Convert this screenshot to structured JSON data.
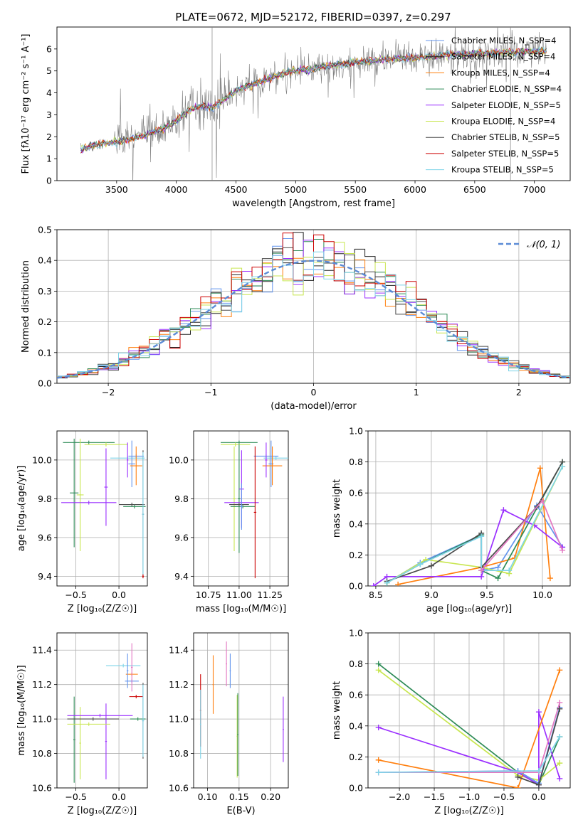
{
  "figure": {
    "title": "PLATE=0672, MJD=52172, FIBERID=0397, z=0.297"
  },
  "model_colors": [
    "#6495ed",
    "#222222",
    "#ff7f0e",
    "#2e8b57",
    "#9b30ff",
    "#c8e650",
    "#4a4a4a",
    "#cc0000",
    "#7fd4e8"
  ],
  "chart_data": [
    {
      "id": "spectrum",
      "type": "line",
      "xlabel": "wavelength [Angstrom, rest frame]",
      "ylabel": "Flux [f$_\\lambda$ 10$^{-17}$ erg cm$^{-2}$ s$^{-1}$ A$^{-1}$]",
      "ylabel_text": "Flux [fλ10⁻¹⁷ erg cm⁻² s⁻¹ A⁻¹]",
      "xlim": [
        3000,
        7300
      ],
      "ylim": [
        0,
        7
      ],
      "xticks": [
        3500,
        4000,
        4500,
        5000,
        5500,
        6000,
        6500,
        7000
      ],
      "yticks": [
        0,
        1,
        2,
        3,
        4,
        5,
        6
      ],
      "grid": false,
      "legend_position": "lower-right",
      "data_color": "#808080",
      "continuum": {
        "x": [
          3200,
          3300,
          3400,
          3500,
          3600,
          3700,
          3800,
          3900,
          4000,
          4100,
          4200,
          4300,
          4400,
          4500,
          4600,
          4700,
          4800,
          4900,
          5000,
          5200,
          5400,
          5600,
          5800,
          6000,
          6200,
          6400,
          6600,
          6800,
          7000,
          7100
        ],
        "y": [
          1.4,
          1.6,
          1.7,
          1.75,
          1.9,
          2.0,
          2.2,
          2.4,
          2.7,
          3.2,
          3.4,
          3.3,
          3.7,
          4.1,
          4.3,
          4.5,
          4.7,
          4.9,
          5.0,
          5.15,
          5.3,
          5.45,
          5.55,
          5.6,
          5.7,
          5.75,
          5.8,
          5.85,
          5.9,
          5.9
        ]
      },
      "series": [
        {
          "name": "Chabrier MILES, N$_{SSP}$=4",
          "label": "Chabrier MILES, N_SSP=4"
        },
        {
          "name": "Salpeter MILES, N$_{SSP}$=4",
          "label": "Salpeter MILES, N_SSP=4"
        },
        {
          "name": "Kroupa MILES, N$_{SSP}$=4",
          "label": "Kroupa MILES, N_SSP=4"
        },
        {
          "name": "Chabrier ELODIE, N$_{SSP}$=4",
          "label": "Chabrier ELODIE, N_SSP=4"
        },
        {
          "name": "Salpeter ELODIE, N$_{SSP}$=5",
          "label": "Salpeter ELODIE, N_SSP=5"
        },
        {
          "name": "Kroupa ELODIE, N$_{SSP}$=4",
          "label": "Kroupa ELODIE, N_SSP=4"
        },
        {
          "name": "Chabrier STELIB, N$_{SSP}$=5",
          "label": "Chabrier STELIB, N_SSP=5"
        },
        {
          "name": "Salpeter STELIB, N$_{SSP}$=5",
          "label": "Salpeter STELIB, N_SSP=5"
        },
        {
          "name": "Kroupa STELIB, N$_{SSP}$=5",
          "label": "Kroupa STELIB, N_SSP=5"
        }
      ]
    },
    {
      "id": "residuals",
      "type": "line",
      "xlabel": "(data-model)/error",
      "ylabel": "Normed distribution",
      "xlim": [
        -2.5,
        2.5
      ],
      "ylim": [
        0,
        0.5
      ],
      "xticks": [
        -2,
        -1,
        0,
        1,
        2
      ],
      "yticks": [
        0.0,
        0.1,
        0.2,
        0.3,
        0.4,
        0.5
      ],
      "grid": true,
      "legend_position": "top-right",
      "reference_curve": {
        "name": "$\\mathcal{N}(0,1)$",
        "label": "𝒩(0, 1)",
        "color": "#5b8bd6",
        "mean": 0,
        "sigma": 1
      },
      "bin_width": 0.1
    },
    {
      "id": "age_vs_Z",
      "type": "scatter",
      "xlabel": "Z [log$_{10}$(Z/Z$_\\odot$)]",
      "xlabel_text": "Z [log₁₀(Z/Z☉)]",
      "ylabel": "age  [log$_{10}$(age/yr)]",
      "ylabel_text": "age  [log₁₀(age/yr)]",
      "xlim": [
        -0.72,
        0.33
      ],
      "ylim": [
        9.35,
        10.15
      ],
      "xticks": [
        -0.5,
        0.0
      ],
      "yticks": [
        9.4,
        9.6,
        9.8,
        10.0
      ],
      "grid": true,
      "errorbars": [
        {
          "x": -0.35,
          "y": 10.09,
          "xerr": 0.3,
          "yerr": 0.01,
          "color": 3
        },
        {
          "x": -0.15,
          "y": 10.08,
          "xerr": 0.25,
          "yerr": 0.01,
          "color": 5
        },
        {
          "x": -0.52,
          "y": 9.83,
          "xerr": 0.05,
          "yerr": 0.28,
          "color": 3
        },
        {
          "x": -0.45,
          "y": 9.82,
          "xerr": 0.04,
          "yerr": 0.29,
          "color": 5
        },
        {
          "x": -0.35,
          "y": 9.78,
          "xerr": 0.32,
          "yerr": 0.01,
          "color": 4
        },
        {
          "x": -0.15,
          "y": 9.86,
          "xerr": 0.02,
          "yerr": 0.2,
          "color": 4
        },
        {
          "x": 0.1,
          "y": 10.01,
          "xerr": 0.2,
          "yerr": 0.01,
          "color": 8
        },
        {
          "x": 0.15,
          "y": 9.98,
          "xerr": 0.04,
          "yerr": 0.12,
          "color": 0
        },
        {
          "x": 0.2,
          "y": 10.02,
          "xerr": 0.09,
          "yerr": 0.01,
          "color": 0
        },
        {
          "x": 0.2,
          "y": 9.97,
          "xerr": 0.07,
          "yerr": 0.1,
          "color": 2
        },
        {
          "x": 0.1,
          "y": 10.0,
          "xerr": 0.01,
          "yerr": 0.09,
          "color": 4
        },
        {
          "x": 0.15,
          "y": 9.77,
          "xerr": 0.15,
          "yerr": 0.01,
          "color": 6
        },
        {
          "x": 0.18,
          "y": 9.76,
          "xerr": 0.13,
          "yerr": 0.01,
          "color": 3
        },
        {
          "x": 0.28,
          "y": 9.72,
          "xerr": 0.01,
          "yerr": 0.33,
          "color": 6
        },
        {
          "x": 0.28,
          "y": 9.72,
          "xerr": 0.01,
          "yerr": 0.32,
          "color": 8
        },
        {
          "x": 0.28,
          "y": 9.4,
          "xerr": 0.01,
          "yerr": 0.01,
          "color": 7
        }
      ]
    },
    {
      "id": "age_vs_mass",
      "type": "scatter",
      "xlabel": "mass [log$_{10}$(M/M$_\\odot$)]",
      "xlabel_text": "mass [log₁₀(M/M☉)]",
      "ylabel": "",
      "xlim": [
        10.63,
        11.4
      ],
      "ylim": [
        9.35,
        10.15
      ],
      "xticks": [
        10.75,
        11.0,
        11.25
      ],
      "yticks": [
        9.4,
        9.6,
        9.8,
        10.0
      ],
      "grid": true,
      "errorbars": [
        {
          "x": 11.0,
          "y": 10.09,
          "xerr": 0.15,
          "yerr": 0.01,
          "color": 3
        },
        {
          "x": 10.97,
          "y": 10.08,
          "xerr": 0.12,
          "yerr": 0.01,
          "color": 5
        },
        {
          "x": 11.0,
          "y": 9.8,
          "xerr": 0.01,
          "yerr": 0.28,
          "color": 3
        },
        {
          "x": 10.96,
          "y": 9.8,
          "xerr": 0.01,
          "yerr": 0.27,
          "color": 5
        },
        {
          "x": 11.02,
          "y": 9.78,
          "xerr": 0.14,
          "yerr": 0.01,
          "color": 4
        },
        {
          "x": 11.02,
          "y": 9.85,
          "xerr": 0.02,
          "yerr": 0.2,
          "color": 4
        },
        {
          "x": 11.3,
          "y": 10.01,
          "xerr": 0.1,
          "yerr": 0.01,
          "color": 8
        },
        {
          "x": 11.22,
          "y": 10.02,
          "xerr": 0.1,
          "yerr": 0.01,
          "color": 0
        },
        {
          "x": 11.26,
          "y": 9.98,
          "xerr": 0.02,
          "yerr": 0.12,
          "color": 0
        },
        {
          "x": 11.27,
          "y": 9.97,
          "xerr": 0.08,
          "yerr": 0.1,
          "color": 2
        },
        {
          "x": 11.22,
          "y": 10.0,
          "xerr": 0.01,
          "yerr": 0.09,
          "color": 4
        },
        {
          "x": 11.0,
          "y": 9.77,
          "xerr": 0.08,
          "yerr": 0.01,
          "color": 6
        },
        {
          "x": 11.03,
          "y": 9.76,
          "xerr": 0.1,
          "yerr": 0.01,
          "color": 3
        },
        {
          "x": 11.13,
          "y": 9.73,
          "xerr": 0.01,
          "yerr": 0.34,
          "color": 7
        },
        {
          "x": 11.02,
          "y": 9.76,
          "xerr": 0.01,
          "yerr": 0.12,
          "color": 0
        }
      ]
    },
    {
      "id": "weight_vs_age",
      "type": "line",
      "xlabel": "age  [log$_{10}$(age/yr)]",
      "xlabel_text": "age  [log₁₀(age/yr)]",
      "ylabel": "mass weight",
      "xlim": [
        8.43,
        10.25
      ],
      "ylim": [
        0,
        1.0
      ],
      "xticks": [
        8.5,
        9.0,
        9.5,
        10.0
      ],
      "yticks": [
        0.0,
        0.2,
        0.4,
        0.6,
        0.8,
        1.0
      ],
      "grid": true,
      "series": [
        {
          "color": 0,
          "x": [
            8.6,
            8.9,
            9.45,
            9.45,
            9.6,
            9.95,
            10.18
          ],
          "y": [
            0.02,
            0.15,
            0.33,
            0.1,
            0.12,
            0.52,
            0.25
          ]
        },
        {
          "color": 2,
          "x": [
            8.7,
            9.45,
            9.75,
            9.98,
            10.07
          ],
          "y": [
            0.01,
            0.12,
            0.18,
            0.76,
            0.05
          ]
        },
        {
          "color": 3,
          "x": [
            8.6,
            8.9,
            9.45,
            9.45,
            9.6,
            10.18
          ],
          "y": [
            0.02,
            0.14,
            0.33,
            0.1,
            0.05,
            0.8
          ]
        },
        {
          "color": 4,
          "x": [
            8.48,
            8.6,
            9.45,
            9.65,
            9.93,
            10.18
          ],
          "y": [
            0.0,
            0.06,
            0.06,
            0.49,
            0.39,
            0.25
          ]
        },
        {
          "color": 5,
          "x": [
            8.6,
            8.95,
            9.45,
            9.7,
            10.18
          ],
          "y": [
            0.02,
            0.17,
            0.12,
            0.08,
            0.77
          ]
        },
        {
          "color": 6,
          "x": [
            8.6,
            9.0,
            9.45,
            9.45,
            9.95,
            10.18
          ],
          "y": [
            0.03,
            0.13,
            0.34,
            0.12,
            0.51,
            0.8
          ]
        },
        {
          "color": 8,
          "x": [
            8.6,
            8.9,
            9.45,
            9.45,
            9.7,
            10.18
          ],
          "y": [
            0.02,
            0.14,
            0.32,
            0.1,
            0.1,
            0.77
          ]
        },
        {
          "color": 9,
          "x": [
            9.45,
            10.0,
            10.18
          ],
          "y": [
            0.1,
            0.55,
            0.23
          ]
        }
      ]
    },
    {
      "id": "mass_vs_Z",
      "type": "scatter",
      "xlabel": "Z [log$_{10}$(Z/Z$_\\odot$)]",
      "xlabel_text": "Z [log₁₀(Z/Z☉)]",
      "ylabel": "mass [log$_{10}$(M/M$_\\odot$)]",
      "ylabel_text": "mass [log₁₀(M/M☉)]",
      "xlim": [
        -0.72,
        0.33
      ],
      "ylim": [
        10.6,
        11.5
      ],
      "xticks": [
        -0.5,
        0.0
      ],
      "yticks": [
        10.6,
        10.8,
        11.0,
        11.2,
        11.4
      ],
      "grid": true,
      "errorbars": [
        {
          "x": -0.52,
          "y": 10.88,
          "xerr": 0.01,
          "yerr": 0.25,
          "color": 3
        },
        {
          "x": -0.45,
          "y": 10.86,
          "xerr": 0.01,
          "yerr": 0.21,
          "color": 5
        },
        {
          "x": -0.3,
          "y": 11.0,
          "xerr": 0.3,
          "yerr": 0.01,
          "color": 6
        },
        {
          "x": -0.22,
          "y": 11.02,
          "xerr": 0.38,
          "yerr": 0.01,
          "color": 4
        },
        {
          "x": -0.15,
          "y": 10.87,
          "xerr": 0.01,
          "yerr": 0.22,
          "color": 4
        },
        {
          "x": -0.35,
          "y": 10.97,
          "xerr": 0.25,
          "yerr": 0.01,
          "color": 5
        },
        {
          "x": 0.05,
          "y": 11.31,
          "xerr": 0.2,
          "yerr": 0.01,
          "color": 8
        },
        {
          "x": 0.15,
          "y": 11.26,
          "xerr": 0.07,
          "yerr": 0.01,
          "color": 2
        },
        {
          "x": 0.15,
          "y": 11.22,
          "xerr": 0.08,
          "yerr": 0.01,
          "color": 0
        },
        {
          "x": 0.15,
          "y": 11.3,
          "xerr": 0.01,
          "yerr": 0.14,
          "color": 9
        },
        {
          "x": 0.1,
          "y": 11.28,
          "xerr": 0.01,
          "yerr": 0.1,
          "color": 0
        },
        {
          "x": 0.2,
          "y": 11.13,
          "xerr": 0.08,
          "yerr": 0.01,
          "color": 7
        },
        {
          "x": 0.22,
          "y": 11.0,
          "xerr": 0.09,
          "yerr": 0.01,
          "color": 3
        },
        {
          "x": 0.28,
          "y": 10.99,
          "xerr": 0.01,
          "yerr": 0.22,
          "color": 6
        },
        {
          "x": 0.28,
          "y": 10.99,
          "xerr": 0.01,
          "yerr": 0.21,
          "color": 8
        }
      ]
    },
    {
      "id": "mass_vs_ebv",
      "type": "scatter",
      "xlabel": "E(B-V)",
      "ylabel": "",
      "xlim": [
        0.078,
        0.228
      ],
      "ylim": [
        10.6,
        11.5
      ],
      "xticks": [
        0.1,
        0.15,
        0.2
      ],
      "yticks": [
        10.6,
        10.8,
        11.0,
        11.2,
        11.4
      ],
      "grid": true,
      "errorbars": [
        {
          "x": 0.089,
          "y": 11.05,
          "xerr": 0.001,
          "yerr": 0.21,
          "color": 7
        },
        {
          "x": 0.089,
          "y": 10.97,
          "xerr": 0.001,
          "yerr": 0.2,
          "color": 8
        },
        {
          "x": 0.109,
          "y": 11.2,
          "xerr": 0.001,
          "yerr": 0.17,
          "color": 2
        },
        {
          "x": 0.13,
          "y": 11.32,
          "xerr": 0.001,
          "yerr": 0.13,
          "color": 9
        },
        {
          "x": 0.136,
          "y": 11.28,
          "xerr": 0.001,
          "yerr": 0.1,
          "color": 0
        },
        {
          "x": 0.147,
          "y": 10.9,
          "xerr": 0.001,
          "yerr": 0.24,
          "color": 5
        },
        {
          "x": 0.148,
          "y": 10.91,
          "xerr": 0.001,
          "yerr": 0.24,
          "color": 3
        },
        {
          "x": 0.22,
          "y": 10.94,
          "xerr": 0.001,
          "yerr": 0.19,
          "color": 4
        }
      ]
    },
    {
      "id": "weight_vs_Z",
      "type": "line",
      "xlabel": "Z [log$_{10}$(Z/Z$_\\odot$)]",
      "xlabel_text": "Z [log₁₀(Z/Z☉)]",
      "ylabel": "mass weight",
      "xlim": [
        -2.45,
        0.45
      ],
      "ylim": [
        0,
        1.0
      ],
      "xticks": [
        -2.0,
        -1.5,
        -1.0,
        -0.5,
        0.0
      ],
      "yticks": [
        0.0,
        0.2,
        0.4,
        0.6,
        0.8,
        1.0
      ],
      "grid": true,
      "series": [
        {
          "color": 3,
          "x": [
            -2.3,
            -0.3,
            0.0,
            0.3
          ],
          "y": [
            0.8,
            0.1,
            0.02,
            0.33
          ]
        },
        {
          "color": 5,
          "x": [
            -2.3,
            -0.3,
            0.0,
            0.3
          ],
          "y": [
            0.76,
            0.08,
            0.05,
            0.16
          ]
        },
        {
          "color": 4,
          "x": [
            -2.3,
            -0.3,
            0.0,
            0.0,
            0.3
          ],
          "y": [
            0.39,
            0.1,
            0.02,
            0.49,
            0.06
          ]
        },
        {
          "color": 2,
          "x": [
            -2.3,
            -0.3,
            0.3
          ],
          "y": [
            0.18,
            0.0,
            0.76
          ]
        },
        {
          "color": 0,
          "x": [
            -2.3,
            -0.3,
            0.0,
            0.3
          ],
          "y": [
            0.1,
            0.11,
            0.03,
            0.52
          ]
        },
        {
          "color": 9,
          "x": [
            -2.3,
            0.0,
            0.3
          ],
          "y": [
            0.1,
            0.1,
            0.55
          ]
        },
        {
          "color": 6,
          "x": [
            -0.3,
            0.0,
            0.3
          ],
          "y": [
            0.07,
            0.02,
            0.51
          ]
        },
        {
          "color": 8,
          "x": [
            -2.3,
            0.0,
            0.3
          ],
          "y": [
            0.1,
            0.11,
            0.33
          ]
        }
      ]
    }
  ]
}
